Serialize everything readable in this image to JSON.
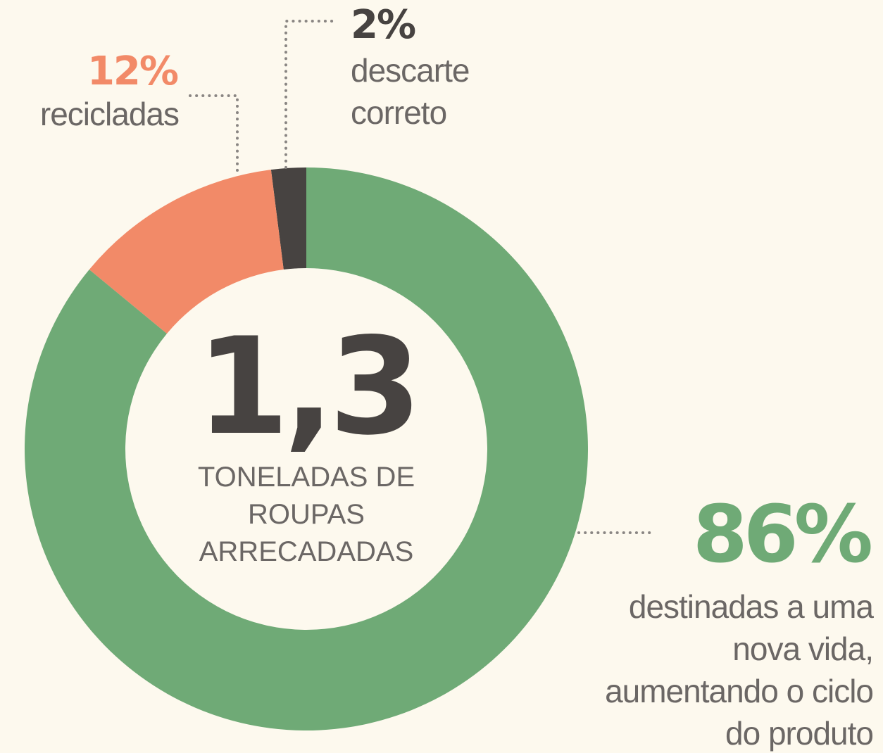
{
  "chart_data": {
    "type": "pie",
    "donut": true,
    "categories": [
      "destinadas a uma nova vida, aumentando o ciclo do produto",
      "recicladas",
      "descarte correto"
    ],
    "values": [
      86,
      12,
      2
    ],
    "value_labels": [
      "86%",
      "12%",
      "2%"
    ],
    "colors": [
      "#6faa76",
      "#f28a68",
      "#474341"
    ],
    "center_value": "1,3",
    "center_label": "TONELADAS DE ROUPAS ARRECADADAS"
  }
}
